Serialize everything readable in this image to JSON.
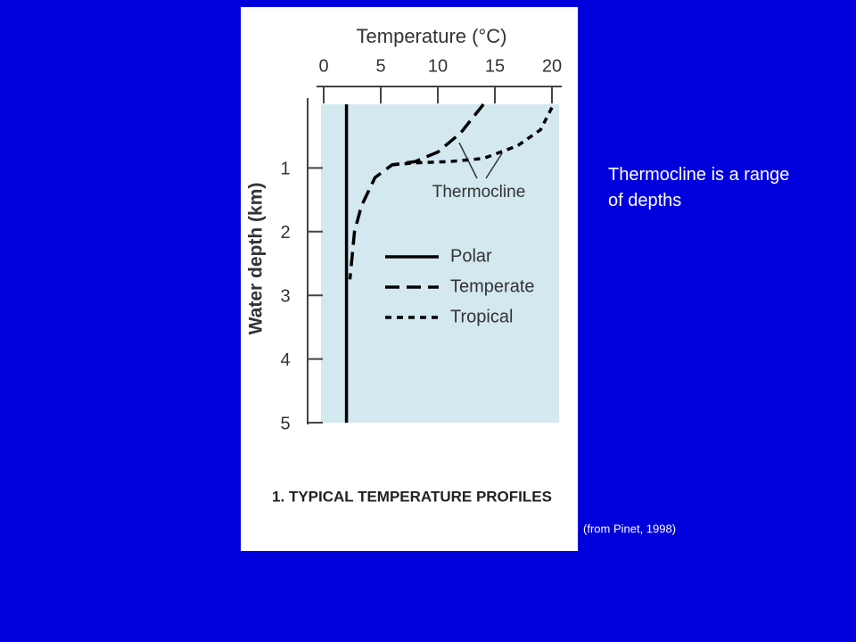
{
  "slide": {
    "note": "Thermocline is a range of depths",
    "source": "(from Pinet, 1998)"
  },
  "chart_data": {
    "type": "line",
    "title": "Temperature (°C)",
    "y_label": "Water depth (km)",
    "caption": "1. TYPICAL TEMPERATURE PROFILES",
    "annotation": "Thermocline",
    "xlim": [
      0,
      20
    ],
    "xticks": [
      0,
      5,
      10,
      15,
      20
    ],
    "ylim": [
      0,
      5
    ],
    "yticks": [
      1,
      2,
      3,
      4,
      5
    ],
    "y_inverted": true,
    "series": [
      {
        "name": "Polar",
        "color": "#000000",
        "style": "solid",
        "x": [
          2,
          2
        ],
        "values": [
          0,
          5
        ]
      },
      {
        "name": "Temperate",
        "color": "#000000",
        "style": "long-dash",
        "x": [
          14,
          12,
          10,
          8,
          6,
          4.5,
          3.3,
          2.7,
          2.3
        ],
        "values": [
          0,
          0.45,
          0.75,
          0.9,
          0.95,
          1.15,
          1.6,
          2,
          2.75
        ]
      },
      {
        "name": "Tropical",
        "color": "#000000",
        "style": "short-dash",
        "x": [
          20,
          19,
          17,
          14,
          11,
          8,
          6
        ],
        "values": [
          0.05,
          0.4,
          0.65,
          0.85,
          0.9,
          0.92,
          0.95
        ]
      }
    ]
  }
}
